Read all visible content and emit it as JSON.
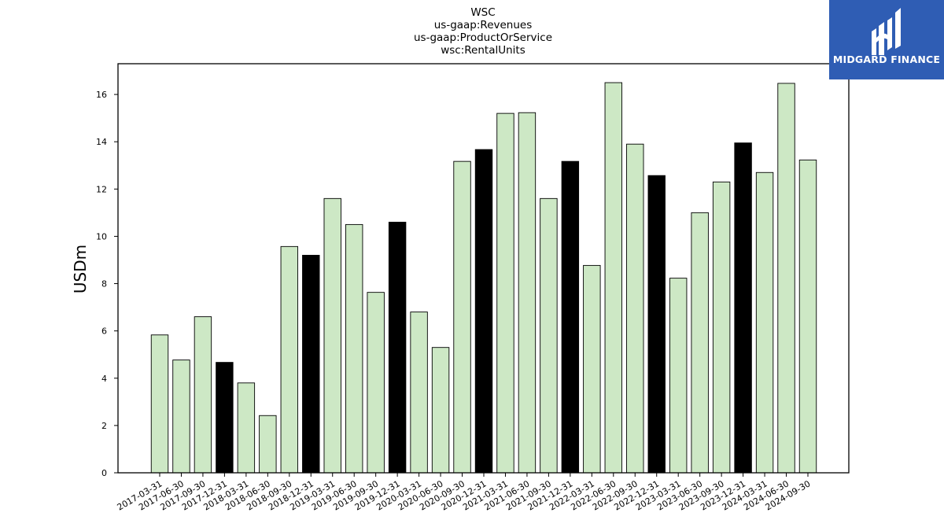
{
  "chart_data": {
    "type": "bar",
    "title_lines": [
      "WSC",
      "us-gaap:Revenues",
      "us-gaap:ProductOrService",
      "wsc:RentalUnits"
    ],
    "xlabel": "",
    "ylabel": "USDm",
    "ylim": [
      0,
      17.3
    ],
    "yticks": [
      0,
      2,
      4,
      6,
      8,
      10,
      12,
      14,
      16
    ],
    "grid": false,
    "categories": [
      "2017-03-31",
      "2017-06-30",
      "2017-09-30",
      "2017-12-31",
      "2018-03-31",
      "2018-06-30",
      "2018-09-30",
      "2018-12-31",
      "2019-03-31",
      "2019-06-30",
      "2019-09-30",
      "2019-12-31",
      "2020-03-31",
      "2020-06-30",
      "2020-09-30",
      "2020-12-31",
      "2021-03-31",
      "2021-06-30",
      "2021-09-30",
      "2021-12-31",
      "2022-03-31",
      "2022-06-30",
      "2022-09-30",
      "2022-12-31",
      "2023-03-31",
      "2023-06-30",
      "2023-09-30",
      "2023-12-31",
      "2024-03-31",
      "2024-06-30",
      "2024-09-30"
    ],
    "values": [
      5.83,
      4.77,
      6.6,
      4.67,
      3.8,
      2.42,
      9.57,
      9.2,
      11.6,
      10.5,
      7.63,
      10.6,
      6.8,
      5.3,
      13.17,
      13.67,
      15.2,
      15.23,
      11.6,
      13.17,
      8.77,
      16.5,
      13.9,
      12.57,
      8.23,
      11.0,
      12.3,
      13.95,
      12.7,
      16.47,
      13.23
    ],
    "colors": {
      "quarter": "#cde8c5",
      "year_end": "#000000",
      "edge": "#000000"
    },
    "year_end_categories": [
      "2017-12-31",
      "2018-12-31",
      "2019-12-31",
      "2020-12-31",
      "2021-12-31",
      "2022-12-31",
      "2023-12-31"
    ]
  },
  "logo": {
    "text": "MIDGARD FINANCE",
    "background": "#2f5db4"
  }
}
